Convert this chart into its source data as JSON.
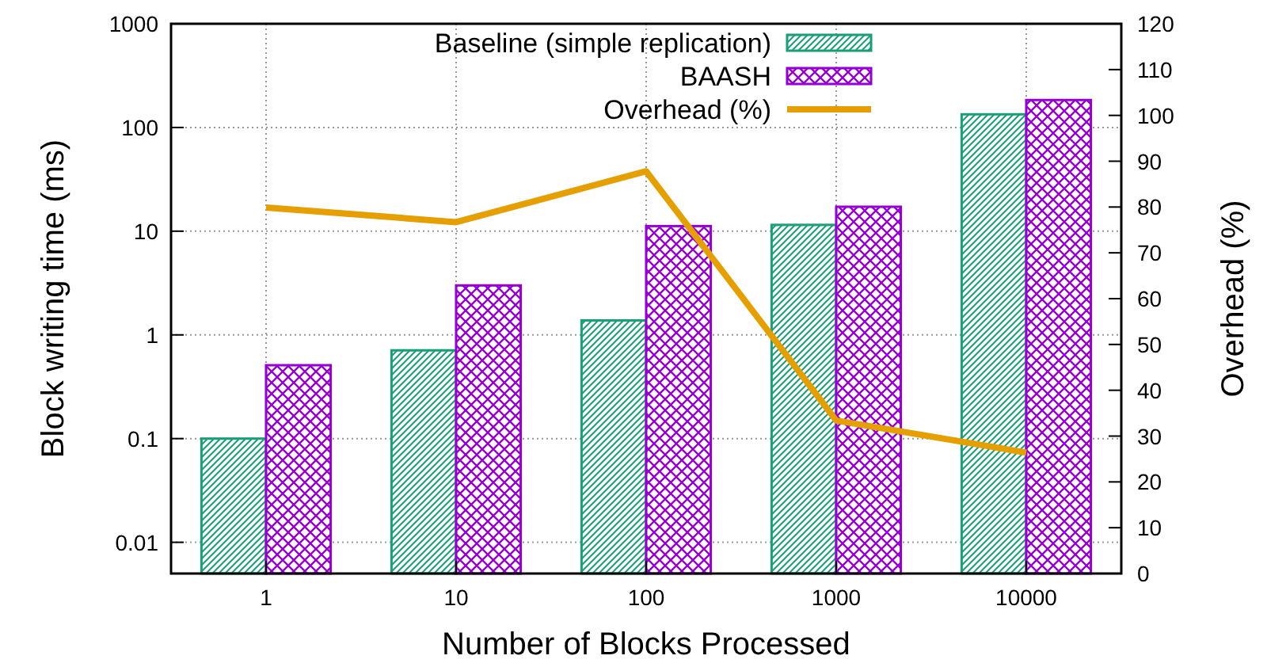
{
  "chart_data": {
    "type": "bar",
    "xlabel": "Number of Blocks Processed",
    "ylabel": "Block writing time (ms)",
    "y2label": "Overhead (%)",
    "categories": [
      "1",
      "10",
      "100",
      "1000",
      "10000"
    ],
    "series": [
      {
        "name": "Baseline (simple replication)",
        "color": "#1a9e77",
        "values": [
          0.1,
          0.71,
          1.38,
          11.5,
          134
        ]
      },
      {
        "name": "BAASH",
        "color": "#9400d3",
        "values": [
          0.51,
          3.0,
          11.2,
          17.2,
          184
        ]
      },
      {
        "name": "Overhead (%)",
        "type": "line",
        "axis": "y2",
        "color": "#e69f00",
        "values": [
          79.9,
          76.7,
          87.8,
          33.4,
          26.4
        ]
      }
    ],
    "log": "y",
    "ylim": [
      0.005,
      1000
    ],
    "yticks": [
      0.01,
      0.1,
      1,
      10,
      100,
      1000
    ],
    "y2lim": [
      0,
      120
    ],
    "y2ticks": [
      0,
      10,
      20,
      30,
      40,
      50,
      60,
      70,
      80,
      90,
      100,
      110,
      120
    ],
    "grid": true,
    "legend": "top",
    "marker": "none",
    "line_style": "solid"
  }
}
